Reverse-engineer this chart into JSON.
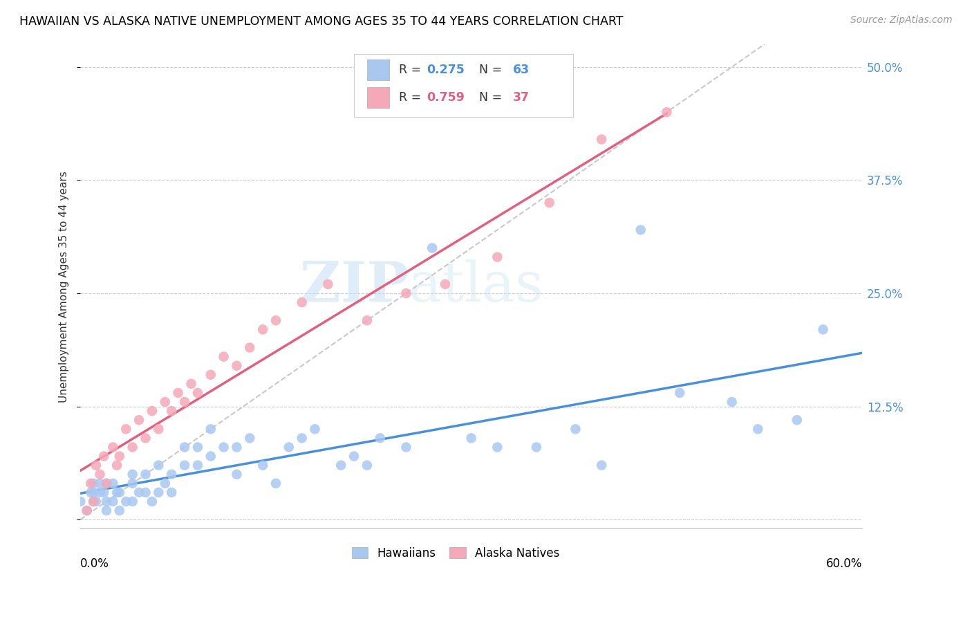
{
  "title": "HAWAIIAN VS ALASKA NATIVE UNEMPLOYMENT AMONG AGES 35 TO 44 YEARS CORRELATION CHART",
  "source": "Source: ZipAtlas.com",
  "ylabel": "Unemployment Among Ages 35 to 44 years",
  "xlim": [
    0.0,
    0.6
  ],
  "ylim": [
    -0.01,
    0.525
  ],
  "yticks": [
    0.0,
    0.125,
    0.25,
    0.375,
    0.5
  ],
  "ytick_labels": [
    "",
    "12.5%",
    "25.0%",
    "37.5%",
    "50.0%"
  ],
  "hawaiians_R": 0.275,
  "hawaiians_N": 63,
  "alaska_R": 0.759,
  "alaska_N": 37,
  "hawaiian_color": "#a8c8f0",
  "alaska_color": "#f5a8b8",
  "hawaiian_line_color": "#4a90d9",
  "alaska_line_color": "#e06080",
  "ref_line_color": "#c8c8c8",
  "watermark_zip": "ZIP",
  "watermark_atlas": "atlas",
  "hawaiians_x": [
    0.0,
    0.005,
    0.008,
    0.01,
    0.01,
    0.01,
    0.012,
    0.015,
    0.015,
    0.018,
    0.02,
    0.02,
    0.02,
    0.025,
    0.025,
    0.028,
    0.03,
    0.03,
    0.035,
    0.04,
    0.04,
    0.04,
    0.045,
    0.05,
    0.05,
    0.055,
    0.06,
    0.06,
    0.065,
    0.07,
    0.07,
    0.08,
    0.08,
    0.09,
    0.09,
    0.1,
    0.1,
    0.11,
    0.12,
    0.12,
    0.13,
    0.14,
    0.15,
    0.16,
    0.17,
    0.18,
    0.2,
    0.21,
    0.22,
    0.23,
    0.25,
    0.27,
    0.3,
    0.32,
    0.35,
    0.38,
    0.4,
    0.43,
    0.46,
    0.5,
    0.52,
    0.55,
    0.57
  ],
  "hawaiians_y": [
    0.02,
    0.01,
    0.03,
    0.02,
    0.03,
    0.04,
    0.02,
    0.03,
    0.04,
    0.03,
    0.01,
    0.02,
    0.04,
    0.02,
    0.04,
    0.03,
    0.01,
    0.03,
    0.02,
    0.02,
    0.04,
    0.05,
    0.03,
    0.03,
    0.05,
    0.02,
    0.03,
    0.06,
    0.04,
    0.03,
    0.05,
    0.06,
    0.08,
    0.06,
    0.08,
    0.07,
    0.1,
    0.08,
    0.05,
    0.08,
    0.09,
    0.06,
    0.04,
    0.08,
    0.09,
    0.1,
    0.06,
    0.07,
    0.06,
    0.09,
    0.08,
    0.3,
    0.09,
    0.08,
    0.08,
    0.1,
    0.06,
    0.32,
    0.14,
    0.13,
    0.1,
    0.11,
    0.21
  ],
  "alaska_x": [
    0.005,
    0.008,
    0.01,
    0.012,
    0.015,
    0.018,
    0.02,
    0.025,
    0.028,
    0.03,
    0.035,
    0.04,
    0.045,
    0.05,
    0.055,
    0.06,
    0.065,
    0.07,
    0.075,
    0.08,
    0.085,
    0.09,
    0.1,
    0.11,
    0.12,
    0.13,
    0.14,
    0.15,
    0.17,
    0.19,
    0.22,
    0.25,
    0.28,
    0.32,
    0.36,
    0.4,
    0.45
  ],
  "alaska_y": [
    0.01,
    0.04,
    0.02,
    0.06,
    0.05,
    0.07,
    0.04,
    0.08,
    0.06,
    0.07,
    0.1,
    0.08,
    0.11,
    0.09,
    0.12,
    0.1,
    0.13,
    0.12,
    0.14,
    0.13,
    0.15,
    0.14,
    0.16,
    0.18,
    0.17,
    0.19,
    0.21,
    0.22,
    0.24,
    0.26,
    0.22,
    0.25,
    0.26,
    0.29,
    0.35,
    0.42,
    0.45
  ]
}
